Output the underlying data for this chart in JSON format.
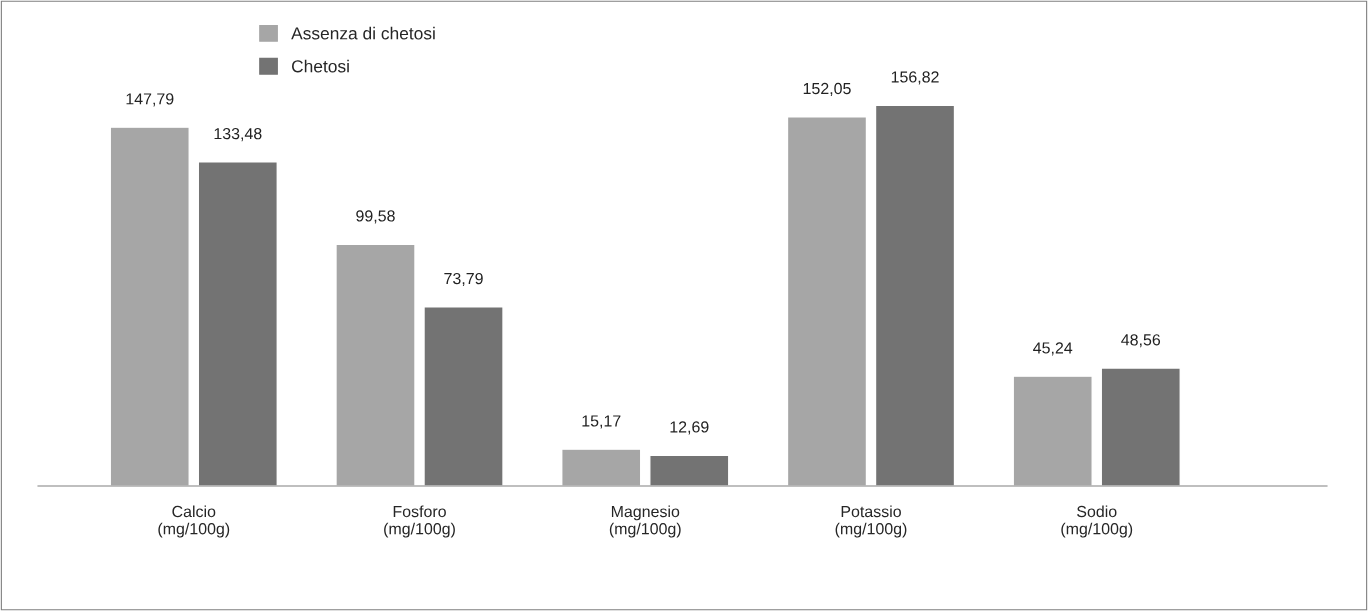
{
  "chart_data": {
    "type": "bar",
    "categories": [
      "Calcio\n(mg/100g)",
      "Fosforo\n(mg/100g)",
      "Magnesio\n(mg/100g)",
      "Potassio\n(mg/100g)",
      "Sodio\n(mg/100g)"
    ],
    "series": [
      {
        "name": "Assenza di chetosi",
        "color": "#a6a6a6",
        "values": [
          147.79,
          99.58,
          15.17,
          152.05,
          45.24
        ],
        "value_labels": [
          "147,79",
          "99,58",
          "15,17",
          "152,05",
          "45,24"
        ]
      },
      {
        "name": "Chetosi",
        "color": "#737373",
        "values": [
          133.48,
          73.79,
          12.69,
          156.82,
          48.56
        ],
        "value_labels": [
          "133,48",
          "73,79",
          "12,69",
          "156,82",
          "48,56"
        ]
      }
    ],
    "legend": "top left",
    "grid": false
  }
}
